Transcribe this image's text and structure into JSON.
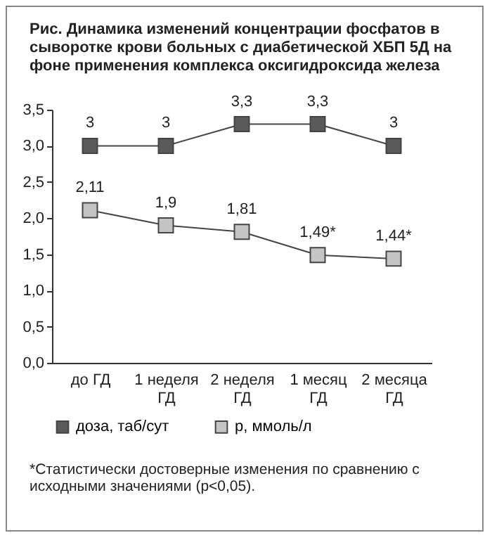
{
  "chart_data": {
    "type": "line",
    "title": "Рис. Динамика изменений концентрации фосфатов в сыворотке крови больных с диабетической ХБП 5Д на фоне применения комплекса оксигидроксида железа",
    "categories": [
      "до ГД",
      "1 неделя ГД",
      "2 неделя ГД",
      "1 месяц ГД",
      "2 месяца ГД"
    ],
    "series": [
      {
        "name": "доза, таб/сут",
        "color": "#5a5a5a",
        "values": [
          3,
          3,
          3.3,
          3.3,
          3
        ],
        "value_labels": [
          "3",
          "3",
          "3,3",
          "3,3",
          "3"
        ]
      },
      {
        "name": "р, ммоль/л",
        "color": "#c4c4c4",
        "values": [
          2.11,
          1.9,
          1.81,
          1.49,
          1.44
        ],
        "value_labels": [
          "2,11",
          "1,9",
          "1,81",
          "1,49*",
          "1,44*"
        ]
      }
    ],
    "ylim": [
      0,
      3.5
    ],
    "yticks": [
      {
        "value": 0,
        "label": "0,0"
      },
      {
        "value": 0.5,
        "label": "0,5"
      },
      {
        "value": 1,
        "label": "1,0"
      },
      {
        "value": 1.5,
        "label": "1,5"
      },
      {
        "value": 2,
        "label": "2,0"
      },
      {
        "value": 2.5,
        "label": "2,5"
      },
      {
        "value": 3,
        "label": "3,0"
      },
      {
        "value": 3.5,
        "label": "3,5"
      }
    ],
    "grid": false,
    "legend": "bottom",
    "marker": "square",
    "line_style": "solid",
    "annotations": [
      "*Статистически достоверные изменения по сравнению с исходными значениями (р<0,05)."
    ]
  }
}
